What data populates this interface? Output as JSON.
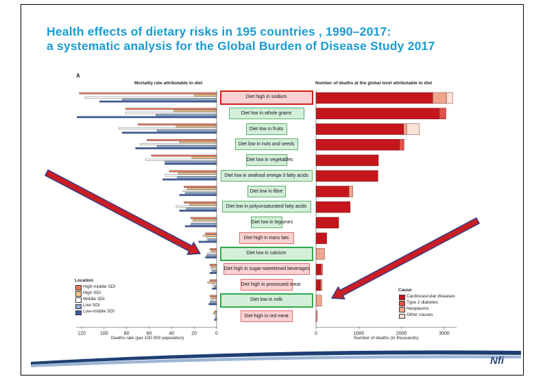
{
  "title": {
    "line1": "Health effects of dietary risks in 195 countries , 1990–2017:",
    "line2": "a systematic analysis for the Global  Burden of Disease Study 2017"
  },
  "panel_label": "A",
  "logo_text": "Nfi",
  "colors": {
    "title": "#1a9bd0",
    "high_middle_sdi": "#e8785a",
    "high_sdi": "#f2c88a",
    "middle_sdi": "#ffffff",
    "low_sdi": "#8fb0d8",
    "low_middle_sdi": "#3a5ea8",
    "cardiovascular": "#c4161c",
    "type2_diabetes": "#e0524a",
    "neoplasms": "#f0a58c",
    "other_causes": "#fbe3d8",
    "arrow": "#c81e24",
    "arrow_edge": "#2b3e8c"
  },
  "chart_data": [
    {
      "type": "bar",
      "orientation": "horizontal",
      "direction": "right-to-left",
      "title": "Mortality rate attributable to diet",
      "xlabel": "Deaths rate (per 100 000 population)",
      "xlim": [
        0,
        125
      ],
      "xticks": [
        "120",
        "100",
        "80",
        "60",
        "40",
        "20",
        "0"
      ],
      "categories": [
        "Diet high in sodium",
        "Diet low in whole grains",
        "Diet low in fruits",
        "Diet low in nuts and seeds",
        "Diet low in vegetables",
        "Diet low in seafood omega-3 fatty acids",
        "Diet low in fibre",
        "Diet low in polyunsaturated fatty acids",
        "Diet low in legumes",
        "Diet high in trans fats",
        "Diet low in calcium",
        "Diet high in sugar-sweetened beverages",
        "Diet high in processed meat",
        "Diet low in milk",
        "Diet high in red meat"
      ],
      "series": [
        {
          "name": "High-middle SDI",
          "values": [
            122,
            81,
            70,
            62,
            58,
            42,
            29,
            29,
            23,
            10,
            6,
            6,
            6,
            6,
            2
          ]
        },
        {
          "name": "High SDI",
          "values": [
            20,
            38,
            36,
            33,
            22,
            34,
            26,
            24,
            21,
            12,
            5,
            5,
            8,
            5,
            3
          ]
        },
        {
          "name": "Middle SDI",
          "values": [
            117,
            81,
            87,
            68,
            63,
            46,
            30,
            36,
            22,
            9,
            8,
            5,
            4,
            5,
            1
          ]
        },
        {
          "name": "Low SDI",
          "values": [
            84,
            54,
            53,
            53,
            46,
            35,
            28,
            27,
            23,
            8,
            9,
            4,
            2,
            6,
            1
          ]
        },
        {
          "name": "Low-middle SDI",
          "values": [
            104,
            124,
            84,
            72,
            46,
            48,
            33,
            33,
            28,
            16,
            10,
            6,
            4,
            7,
            2
          ]
        }
      ],
      "legend": {
        "title": "Location",
        "position": "bottom-left",
        "entries": [
          "High-middle SDI",
          "High SDI",
          "Middle SDI",
          "Low SDI",
          "Low-middle SDI"
        ]
      }
    },
    {
      "type": "bar",
      "orientation": "horizontal",
      "stacked": true,
      "title": "Number of deaths at the global level attributable to diet",
      "xlabel": "Number of deaths (in thousands)",
      "xlim": [
        0,
        3300
      ],
      "xticks": [
        "0",
        "1000",
        "2000",
        "3000"
      ],
      "categories": [
        "Diet high in sodium",
        "Diet low in whole grains",
        "Diet low in fruits",
        "Diet low in nuts and seeds",
        "Diet low in vegetables",
        "Diet low in seafood omega-3 fatty acids",
        "Diet low in fibre",
        "Diet low in polyunsaturated fatty acids",
        "Diet low in legumes",
        "Diet high in trans fats",
        "Diet low in calcium",
        "Diet high in sugar-sweetened beverages",
        "Diet high in processed meat",
        "Diet low in milk",
        "Diet high in red meat"
      ],
      "series": [
        {
          "name": "Cardiovascular diseases",
          "values": [
            2730,
            2880,
            2050,
            1950,
            1460,
            1450,
            770,
            800,
            530,
            250,
            0,
            110,
            90,
            0,
            0
          ]
        },
        {
          "name": "Type 2 diabetes",
          "values": [
            0,
            160,
            0,
            110,
            0,
            0,
            0,
            0,
            0,
            0,
            0,
            40,
            20,
            0,
            0
          ]
        },
        {
          "name": "Neoplasms",
          "values": [
            320,
            0,
            70,
            0,
            0,
            0,
            90,
            0,
            0,
            0,
            200,
            0,
            30,
            130,
            30
          ]
        },
        {
          "name": "Other causes",
          "values": [
            150,
            0,
            300,
            0,
            0,
            0,
            0,
            0,
            0,
            0,
            0,
            0,
            0,
            0,
            0
          ]
        }
      ],
      "legend": {
        "title": "Cause",
        "position": "bottom-right",
        "entries": [
          "Cardiovascular diseases",
          "Type 2 diabetes",
          "Neoplasms",
          "Other causes"
        ]
      }
    }
  ]
}
